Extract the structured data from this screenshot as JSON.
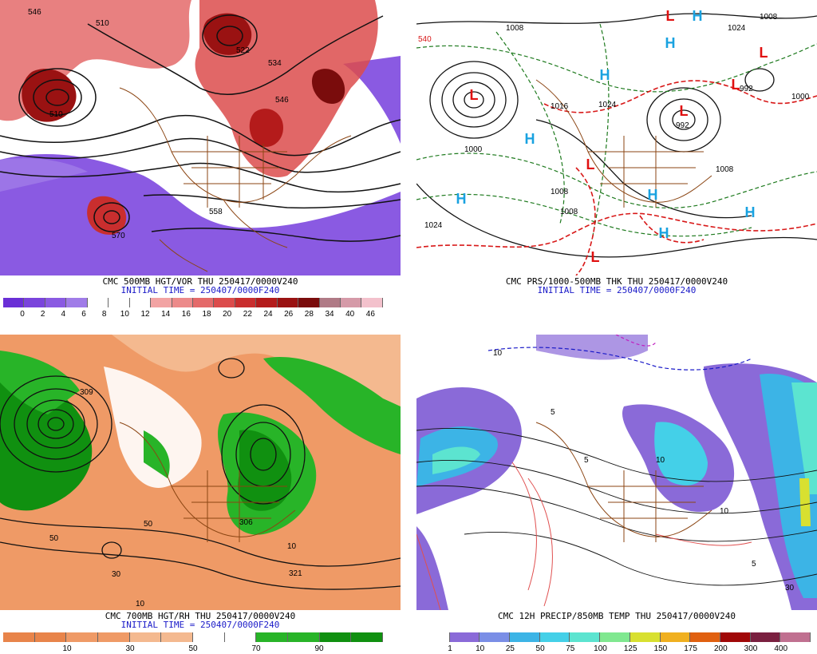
{
  "panels": [
    {
      "caption_top": "CMC 500MB HGT/VOR THU 250417/0000V240",
      "caption_bottom": "INITIAL TIME = 250407/0000F240",
      "colorbar_ticks": [
        "0",
        "2",
        "4",
        "6",
        "8",
        "10",
        "12",
        "14",
        "16",
        "18",
        "20",
        "22",
        "24",
        "26",
        "28",
        "34",
        "40",
        "46"
      ],
      "colorbar_colors": [
        "#6a2fd6",
        "#7a44dc",
        "#8a5ae2",
        "#a07ce8",
        "#ffffff",
        "#ffffff",
        "#ffffff",
        "#f2a3a3",
        "#ec8a8a",
        "#e46a6a",
        "#dc4c4c",
        "#c92e2e",
        "#b41b1b",
        "#9a1212",
        "#7a0c0c",
        "#b07a86",
        "#d59aa8",
        "#f3c1cc"
      ],
      "contour_labels": [
        "546",
        "510",
        "522",
        "534",
        "546",
        "570",
        "558",
        "510"
      ],
      "map_colors": {
        "low": "#8a5ae2",
        "high": "#dc4c4c",
        "background": "#ffffff"
      }
    },
    {
      "caption_top": "CMC PRS/1000-500MB THK THU 250417/0000V240",
      "caption_bottom": "INITIAL TIME = 250407/0000F240",
      "pressure_labels": [
        "1008",
        "1024",
        "992",
        "1016",
        "1008",
        "1000",
        "1024",
        "1016",
        "1008",
        "1008",
        "992",
        "1000",
        "1008",
        "1024"
      ],
      "centers": [
        {
          "type": "L",
          "color": "#e01010"
        },
        {
          "type": "L",
          "color": "#e01010"
        },
        {
          "type": "L",
          "color": "#e01010"
        },
        {
          "type": "L",
          "color": "#e01010"
        },
        {
          "type": "L",
          "color": "#e01010"
        },
        {
          "type": "L",
          "color": "#e01010"
        },
        {
          "type": "L",
          "color": "#e01010"
        },
        {
          "type": "H",
          "color": "#19a2e0"
        },
        {
          "type": "H",
          "color": "#19a2e0"
        },
        {
          "type": "H",
          "color": "#19a2e0"
        },
        {
          "type": "H",
          "color": "#19a2e0"
        },
        {
          "type": "H",
          "color": "#19a2e0"
        },
        {
          "type": "H",
          "color": "#19a2e0"
        },
        {
          "type": "H",
          "color": "#19a2e0"
        },
        {
          "type": "H",
          "color": "#19a2e0"
        }
      ],
      "label_540": "540"
    },
    {
      "caption_top": "CMC 700MB HGT/RH THU 250417/0000V240",
      "caption_bottom": "INITIAL TIME = 250407/0000F240",
      "colorbar_ticks": [
        "10",
        "30",
        "50",
        "70",
        "90"
      ],
      "colorbar_colors": [
        "#e8844a",
        "#e8844a",
        "#ef9a66",
        "#ef9a66",
        "#f4b98f",
        "#f4b98f",
        "#ffffff",
        "#ffffff",
        "#28b428",
        "#28b428",
        "#109010",
        "#109010"
      ],
      "contour_labels": [
        "309",
        "50",
        "321",
        "306",
        "50",
        "10",
        "30",
        "10"
      ]
    },
    {
      "caption_top": "CMC 12H PRECIP/850MB TEMP THU 250417/0000V240",
      "colorbar_ticks": [
        "1",
        "10",
        "25",
        "50",
        "75",
        "100",
        "125",
        "150",
        "175",
        "200",
        "300",
        "400"
      ],
      "colorbar_colors": [
        "#ffffff",
        "#8a6ad8",
        "#7a8ee6",
        "#3cb4e6",
        "#44d0e8",
        "#5ce4d0",
        "#80e890",
        "#d8e030",
        "#f0b020",
        "#e06010",
        "#a00808",
        "#7a2040",
        "#c07090"
      ],
      "contour_labels": [
        "10",
        "5",
        "10",
        "30",
        "5",
        "10",
        "5"
      ]
    }
  ]
}
